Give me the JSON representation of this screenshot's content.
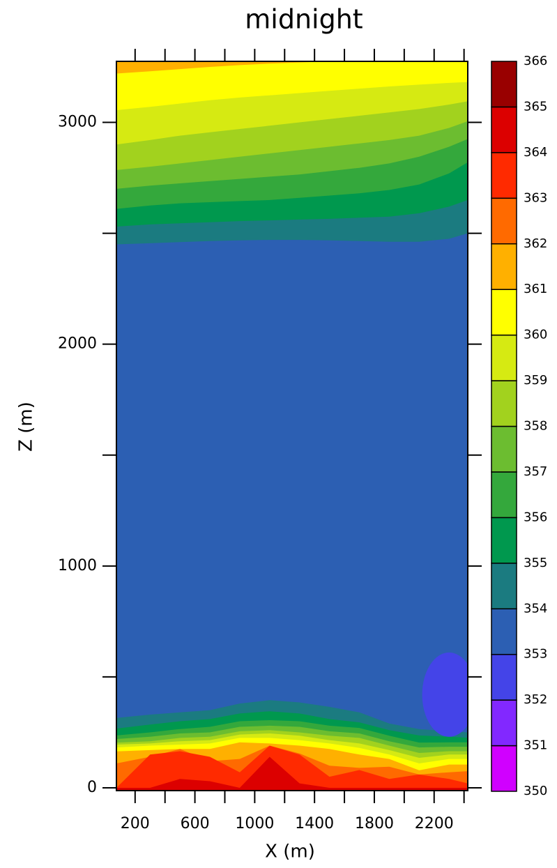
{
  "chart_data": {
    "type": "contour",
    "title": "midnight",
    "x_label": "X (m)",
    "y_label": "Z (m)",
    "xlim": [
      75,
      2425
    ],
    "ylim": [
      0,
      3275
    ],
    "xticks": [
      200,
      600,
      1000,
      1400,
      1800,
      2200
    ],
    "xminor_ticks": [
      400,
      800,
      1200,
      1600,
      2000,
      2400
    ],
    "yticks": [
      0,
      1000,
      2000,
      3000
    ],
    "yminor_ticks": [
      500,
      1500,
      2500
    ],
    "levels": [
      350,
      351,
      352,
      353,
      354,
      355,
      356,
      357,
      358,
      359,
      360,
      361,
      362,
      363,
      364,
      365,
      366
    ],
    "colors": [
      "#d000ff",
      "#8228ff",
      "#4444e8",
      "#2c5fb3",
      "#1b7b80",
      "#00984e",
      "#34a83c",
      "#6cbd30",
      "#a2d21e",
      "#d6ea12",
      "#ffff00",
      "#ffb000",
      "#ff6a00",
      "#ff2a00",
      "#dc0000",
      "#990000"
    ],
    "background_level": 353,
    "x": [
      75,
      300,
      500,
      700,
      900,
      1100,
      1300,
      1500,
      1700,
      1900,
      2100,
      2300,
      2425
    ],
    "top_contours": [
      {
        "level": 354,
        "z": [
          2450,
          2455,
          2460,
          2465,
          2468,
          2470,
          2470,
          2468,
          2465,
          2462,
          2462,
          2475,
          2500
        ]
      },
      {
        "level": 355,
        "z": [
          2530,
          2540,
          2545,
          2550,
          2555,
          2558,
          2562,
          2565,
          2570,
          2575,
          2590,
          2620,
          2650
        ]
      },
      {
        "level": 356,
        "z": [
          2610,
          2625,
          2635,
          2640,
          2645,
          2650,
          2660,
          2670,
          2680,
          2695,
          2720,
          2770,
          2820
        ]
      },
      {
        "level": 357,
        "z": [
          2700,
          2715,
          2725,
          2735,
          2745,
          2755,
          2765,
          2780,
          2795,
          2815,
          2845,
          2890,
          2925
        ]
      },
      {
        "level": 358,
        "z": [
          2785,
          2800,
          2815,
          2830,
          2845,
          2860,
          2875,
          2890,
          2905,
          2920,
          2940,
          2975,
          3005
        ]
      },
      {
        "level": 359,
        "z": [
          2900,
          2920,
          2940,
          2955,
          2970,
          2985,
          3000,
          3015,
          3030,
          3045,
          3060,
          3080,
          3095
        ]
      },
      {
        "level": 360,
        "z": [
          3055,
          3070,
          3085,
          3100,
          3112,
          3122,
          3132,
          3142,
          3152,
          3162,
          3170,
          3178,
          3182
        ]
      },
      {
        "level": 361,
        "z": [
          3220,
          3230,
          3240,
          3250,
          3258,
          3265,
          3270,
          3275,
          3275,
          3275,
          3275,
          3275,
          3275
        ]
      }
    ],
    "bottom_contours": [
      {
        "level": 354,
        "z": [
          315,
          330,
          340,
          350,
          380,
          395,
          385,
          365,
          340,
          290,
          265,
          255,
          250
        ]
      },
      {
        "level": 355,
        "z": [
          267,
          285,
          300,
          310,
          335,
          345,
          335,
          310,
          295,
          260,
          236,
          230,
          226
        ]
      },
      {
        "level": 356,
        "z": [
          236,
          250,
          265,
          275,
          300,
          305,
          300,
          280,
          270,
          235,
          204,
          205,
          205
        ]
      },
      {
        "level": 357,
        "z": [
          220,
          230,
          245,
          250,
          275,
          280,
          275,
          255,
          245,
          210,
          182,
          185,
          185
        ]
      },
      {
        "level": 358,
        "z": [
          204,
          210,
          225,
          230,
          255,
          260,
          250,
          235,
          225,
          190,
          157,
          165,
          165
        ]
      },
      {
        "level": 359,
        "z": [
          195,
          200,
          210,
          215,
          240,
          245,
          235,
          215,
          200,
          170,
          135,
          150,
          150
        ]
      },
      {
        "level": 360,
        "z": [
          182,
          190,
          195,
          200,
          225,
          225,
          215,
          200,
          180,
          150,
          110,
          130,
          130
        ]
      },
      {
        "level": 361,
        "z": [
          164,
          170,
          175,
          175,
          205,
          200,
          190,
          175,
          150,
          130,
          79,
          105,
          105
        ]
      },
      {
        "level": 362,
        "z": [
          110,
          140,
          175,
          120,
          130,
          190,
          155,
          100,
          90,
          95,
          60,
          70,
          75
        ]
      },
      {
        "level": 363,
        "z": [
          0,
          150,
          165,
          140,
          70,
          190,
          150,
          50,
          80,
          40,
          60,
          40,
          20
        ]
      },
      {
        "level": 364,
        "z": [
          0,
          0,
          40,
          30,
          0,
          140,
          20,
          0,
          0,
          0,
          0,
          0,
          0
        ]
      }
    ],
    "low_region": {
      "level": 352,
      "x": 2300,
      "z": 420,
      "rx": 180,
      "rz": 190
    }
  }
}
